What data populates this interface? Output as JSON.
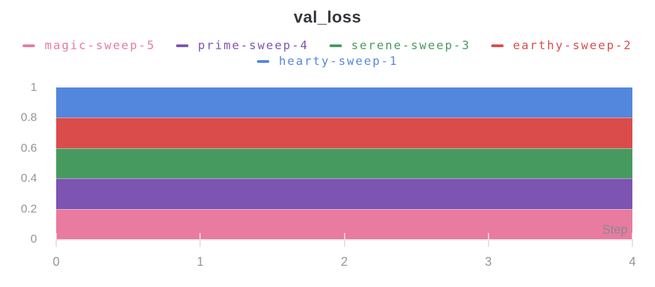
{
  "panel": {
    "title": "val_loss"
  },
  "legend": {
    "rows": [
      [
        {
          "label": "magic-sweep-5",
          "color": "#E87B9F"
        },
        {
          "label": "prime-sweep-4",
          "color": "#7D54B2"
        },
        {
          "label": "serene-sweep-3",
          "color": "#479A5F"
        },
        {
          "label": "earthy-sweep-2",
          "color": "#DA4C4C"
        }
      ],
      [
        {
          "label": "hearty-sweep-1",
          "color": "#5387DD"
        }
      ]
    ]
  },
  "axes": {
    "x_label": "Step",
    "x_tick_labels": [
      "0",
      "1",
      "2",
      "3",
      "4"
    ],
    "y_tick_labels": [
      "1",
      "0.8",
      "0.6",
      "0.4",
      "0.2",
      "0"
    ]
  },
  "colors": {
    "title_text": "#33373D",
    "axis_label_text": "#94949C",
    "axis_line": "#E9E9ED"
  },
  "chart_data": {
    "type": "area",
    "title": "val_loss",
    "xlabel": "Step",
    "ylabel": "",
    "stacked": true,
    "grid": false,
    "legend_position": "top",
    "xlim": [
      0,
      4
    ],
    "ylim": [
      0,
      1
    ],
    "x": [
      0,
      1,
      2,
      3,
      4
    ],
    "x_ticks": [
      0,
      1,
      2,
      3,
      4
    ],
    "y_ticks": [
      0,
      0.2,
      0.4,
      0.6,
      0.8,
      1
    ],
    "series": [
      {
        "name": "magic-sweep-5",
        "color": "#E87B9F",
        "values": [
          0.2,
          0.2,
          0.2,
          0.2,
          0.2
        ],
        "stack_band": [
          0.0,
          0.2
        ]
      },
      {
        "name": "prime-sweep-4",
        "color": "#7D54B2",
        "values": [
          0.2,
          0.2,
          0.2,
          0.2,
          0.2
        ],
        "stack_band": [
          0.2,
          0.4
        ]
      },
      {
        "name": "serene-sweep-3",
        "color": "#479A5F",
        "values": [
          0.2,
          0.2,
          0.2,
          0.2,
          0.2
        ],
        "stack_band": [
          0.4,
          0.6
        ]
      },
      {
        "name": "earthy-sweep-2",
        "color": "#DA4C4C",
        "values": [
          0.2,
          0.2,
          0.2,
          0.2,
          0.2
        ],
        "stack_band": [
          0.6,
          0.8
        ]
      },
      {
        "name": "hearty-sweep-1",
        "color": "#5387DD",
        "values": [
          0.2,
          0.2,
          0.2,
          0.2,
          0.2
        ],
        "stack_band": [
          0.8,
          1.0
        ]
      }
    ]
  }
}
